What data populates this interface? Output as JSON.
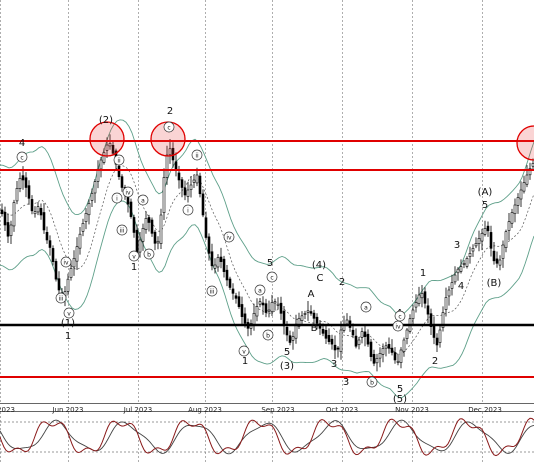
{
  "chart_data": {
    "type": "candlestick",
    "x_tick_labels": [
      "2023",
      "Jun 2023",
      "Jul 2023",
      "Aug 2023",
      "Sep 2023",
      "Oct 2023",
      "Nov 2023",
      "Dec 2023"
    ],
    "grid": true,
    "colors": {
      "bull": "#2e7d32",
      "bear": "#000000",
      "band": "#5fa08a",
      "red_line": "#e00000",
      "black_line": "#000000",
      "oscillator_main": "#8a1a1a",
      "oscillator_signal": "#444444"
    },
    "horizontal_lines": [
      {
        "kind": "resistance",
        "color": "#e00000",
        "level": 1.0
      },
      {
        "kind": "resistance",
        "color": "#e00000",
        "level": 0.88
      },
      {
        "kind": "support",
        "color": "#000000",
        "level": 0.0
      },
      {
        "kind": "support",
        "color": "#e00000",
        "level": -0.35
      }
    ],
    "highlight_circles": [
      "top-1",
      "top-2",
      "top-3"
    ],
    "wave_labels": [
      "4",
      "(2)",
      "2",
      "1",
      "(4)",
      "C",
      "A",
      "B",
      "2",
      "4",
      "(A)",
      "5",
      "3",
      "4",
      "(B)",
      "1",
      "5",
      "(1)",
      "1",
      "3",
      "(3)",
      "5",
      "3",
      "1",
      "2",
      "5",
      "(5)"
    ],
    "circled_labels": [
      "c",
      "ii",
      "i",
      "iii",
      "iv",
      "v",
      "iv",
      "v",
      "iii",
      "a",
      "b",
      "c",
      "ii",
      "i",
      "iii",
      "iv",
      "v",
      "a",
      "b",
      "c",
      "iv",
      "a",
      "b",
      "c"
    ]
  }
}
